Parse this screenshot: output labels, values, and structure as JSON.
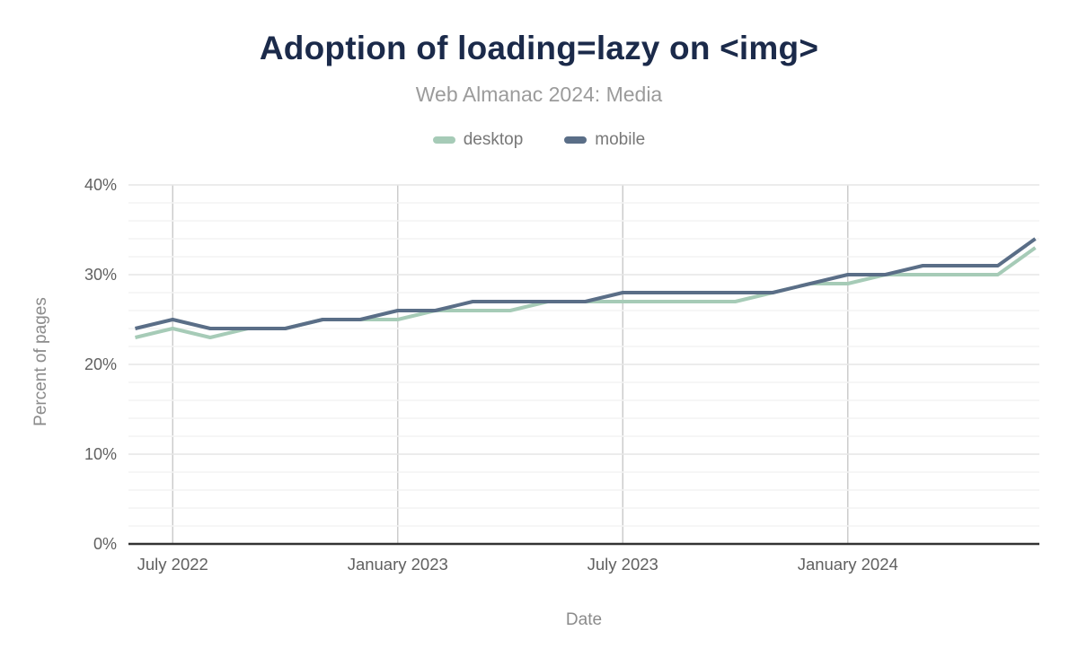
{
  "header": {
    "title": "Adoption of loading=lazy on <img>",
    "subtitle": "Web Almanac 2024: Media"
  },
  "axes": {
    "y_title": "Percent of pages",
    "x_title": "Date",
    "y_ticks": [
      {
        "label": "0%",
        "value": 0
      },
      {
        "label": "10%",
        "value": 10
      },
      {
        "label": "20%",
        "value": 20
      },
      {
        "label": "30%",
        "value": 30
      },
      {
        "label": "40%",
        "value": 40
      }
    ],
    "x_ticks": [
      {
        "label": "July 2022",
        "month_index": 1
      },
      {
        "label": "January 2023",
        "month_index": 7
      },
      {
        "label": "July 2023",
        "month_index": 13
      },
      {
        "label": "January 2024",
        "month_index": 19
      }
    ]
  },
  "colors": {
    "title": "#1b2a4a",
    "subtitle": "#9b9b9b",
    "desktop_series": "#a6cbb7",
    "mobile_series": "#5a6e87",
    "grid_vertical": "#cccccc",
    "grid_major": "#e6e6e6",
    "grid_minor": "#f4f4f4",
    "axis_line": "#333333",
    "tick_text": "#606060",
    "axis_title_text": "#8b8b8b"
  },
  "chart_data": {
    "type": "line",
    "title": "Adoption of loading=lazy on <img>",
    "subtitle": "Web Almanac 2024: Media",
    "xlabel": "Date",
    "ylabel": "Percent of pages",
    "unit": "%",
    "ylim": [
      0,
      40
    ],
    "y_major_step": 10,
    "y_minor_step": 2,
    "grid": true,
    "legend_position": "top",
    "x": [
      "2022-06",
      "2022-07",
      "2022-08",
      "2022-09",
      "2022-10",
      "2022-11",
      "2022-12",
      "2023-01",
      "2023-02",
      "2023-03",
      "2023-04",
      "2023-05",
      "2023-06",
      "2023-07",
      "2023-08",
      "2023-09",
      "2023-10",
      "2023-11",
      "2023-12",
      "2024-01",
      "2024-02",
      "2024-03",
      "2024-04",
      "2024-05",
      "2024-06"
    ],
    "x_gridline_indices": [
      1,
      7,
      13,
      19
    ],
    "x_tick_labels": [
      "July 2022",
      "January 2023",
      "July 2023",
      "January 2024"
    ],
    "series": [
      {
        "name": "desktop",
        "color": "#a6cbb7",
        "values": [
          23,
          24,
          23,
          24,
          24,
          25,
          25,
          25,
          26,
          26,
          26,
          27,
          27,
          27,
          27,
          27,
          27,
          28,
          29,
          29,
          30,
          30,
          30,
          30,
          33
        ]
      },
      {
        "name": "mobile",
        "color": "#5a6e87",
        "values": [
          24,
          25,
          24,
          24,
          24,
          25,
          25,
          26,
          26,
          27,
          27,
          27,
          27,
          28,
          28,
          28,
          28,
          28,
          29,
          30,
          30,
          31,
          31,
          31,
          34
        ]
      }
    ]
  }
}
